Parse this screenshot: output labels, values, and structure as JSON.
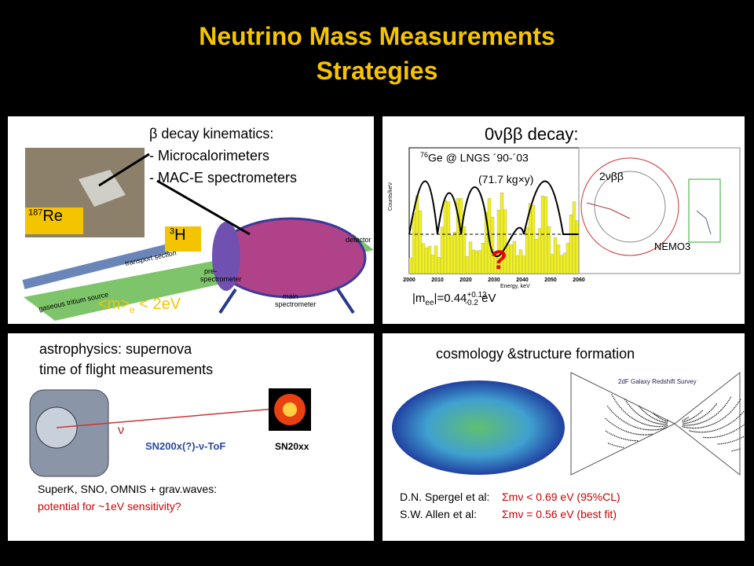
{
  "header": {
    "title": "Neutrino Mass Measurements",
    "subtitle": "Strategies"
  },
  "panels": {
    "beta": {
      "heading": "β decay kinematics:",
      "items": [
        "- Microcalorimeters",
        "- MAC-E spectrometers"
      ],
      "re": {
        "sup": "187",
        "base": "Re"
      },
      "h": {
        "sup": "3",
        "base": "H"
      },
      "limit": {
        "pre": "<m>",
        "sub": "e",
        "post": " < 2eV"
      },
      "labels": [
        "gaseous tritium source",
        "transport section",
        "pre-",
        "spectrometer",
        "main",
        "spectrometer",
        "detector"
      ]
    },
    "double_beta": {
      "heading": "0νββ decay:",
      "ge": {
        "sup": "76",
        "base": "Ge @ LNGS ´90-´03"
      },
      "exposure": "(71.7 kg×y)",
      "two_nu": "2νββ",
      "nemo": "NEMO3",
      "question": "?",
      "result": {
        "pre": "|m",
        "sub1": "ee",
        "mid": "|=0.44",
        "sup": "+0.13",
        "sub2": "-0.2",
        "post": " eV"
      },
      "axis_ticks": [
        "2000",
        "2010",
        "2020",
        "2030",
        "2040",
        "2050",
        "2060"
      ],
      "x_label": "Energy, keV",
      "y_label": "Counts/keV"
    },
    "astro": {
      "heading": [
        "astrophysics: supernova",
        "time of flight measurements"
      ],
      "nu": "ν",
      "tof": "SN200x(?)-ν-ToF",
      "sn": "SN20xx",
      "note": "SuperK, SNO, OMNIS + grav.waves:",
      "note_red": "potential for ~1eV sensitivity?"
    },
    "cosmo": {
      "heading": "cosmology &structure formation",
      "survey": "2dF Galaxy Redshift Survey",
      "refs": [
        {
          "author": "D.N. Spergel et al:",
          "result": "Σmν < 0.69 eV (95%CL)"
        },
        {
          "author": "S.W. Allen et al:",
          "result": "Σmν = 0.56 eV  (best fit)"
        }
      ]
    }
  }
}
